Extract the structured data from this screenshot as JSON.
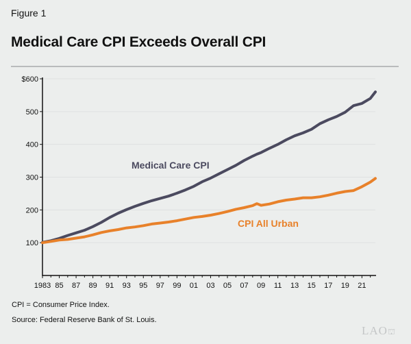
{
  "figure_label": "Figure 1",
  "title": "Medical Care CPI Exceeds Overall CPI",
  "notes": [
    "CPI = Consumer Price Index.",
    "Source: Federal Reserve Bank of St. Louis."
  ],
  "logo": "LAO",
  "chart_data": {
    "type": "line",
    "title": "Medical Care CPI Exceeds Overall CPI",
    "xlabel": "",
    "ylabel": "",
    "xlim": [
      1983,
      2022.6
    ],
    "ylim": [
      0,
      600
    ],
    "grid": true,
    "yticks": [
      100,
      200,
      300,
      400,
      500,
      600
    ],
    "ytick_labels": [
      "100",
      "200",
      "300",
      "400",
      "500",
      "$600"
    ],
    "xticks": [
      1983,
      1985,
      1987,
      1989,
      1991,
      1993,
      1995,
      1997,
      1999,
      2001,
      2003,
      2005,
      2007,
      2009,
      2011,
      2013,
      2015,
      2017,
      2019,
      2021
    ],
    "xtick_labels": [
      "1983",
      "85",
      "87",
      "89",
      "91",
      "93",
      "95",
      "97",
      "99",
      "01",
      "03",
      "05",
      "07",
      "09",
      "11",
      "13",
      "15",
      "17",
      "19",
      "21"
    ],
    "x": [
      1983,
      1984,
      1985,
      1986,
      1987,
      1988,
      1989,
      1990,
      1991,
      1992,
      1993,
      1994,
      1995,
      1996,
      1997,
      1998,
      1999,
      2000,
      2001,
      2002,
      2003,
      2004,
      2005,
      2006,
      2007,
      2008,
      2008.5,
      2009,
      2010,
      2011,
      2012,
      2013,
      2014,
      2015,
      2016,
      2017,
      2018,
      2019,
      2020,
      2021,
      2022,
      2022.6
    ],
    "series": [
      {
        "name": "Medical Care CPI",
        "color": "#4b4a5f",
        "values": [
          101,
          106,
          113,
          122,
          130,
          138,
          149,
          162,
          177,
          190,
          201,
          211,
          220,
          228,
          235,
          242,
          251,
          261,
          272,
          286,
          297,
          310,
          323,
          336,
          351,
          364,
          370,
          375,
          388,
          400,
          414,
          426,
          435,
          446,
          463,
          475,
          485,
          498,
          518,
          525,
          540,
          560
        ]
      },
      {
        "name": "CPI All Urban",
        "color": "#e8812a",
        "values": [
          100,
          104,
          108,
          110,
          114,
          118,
          124,
          131,
          136,
          140,
          145,
          148,
          152,
          157,
          160,
          163,
          167,
          172,
          177,
          180,
          184,
          189,
          195,
          202,
          207,
          213,
          219,
          214,
          218,
          225,
          230,
          233,
          237,
          237,
          240,
          245,
          251,
          256,
          259,
          271,
          285,
          296
        ]
      }
    ]
  }
}
